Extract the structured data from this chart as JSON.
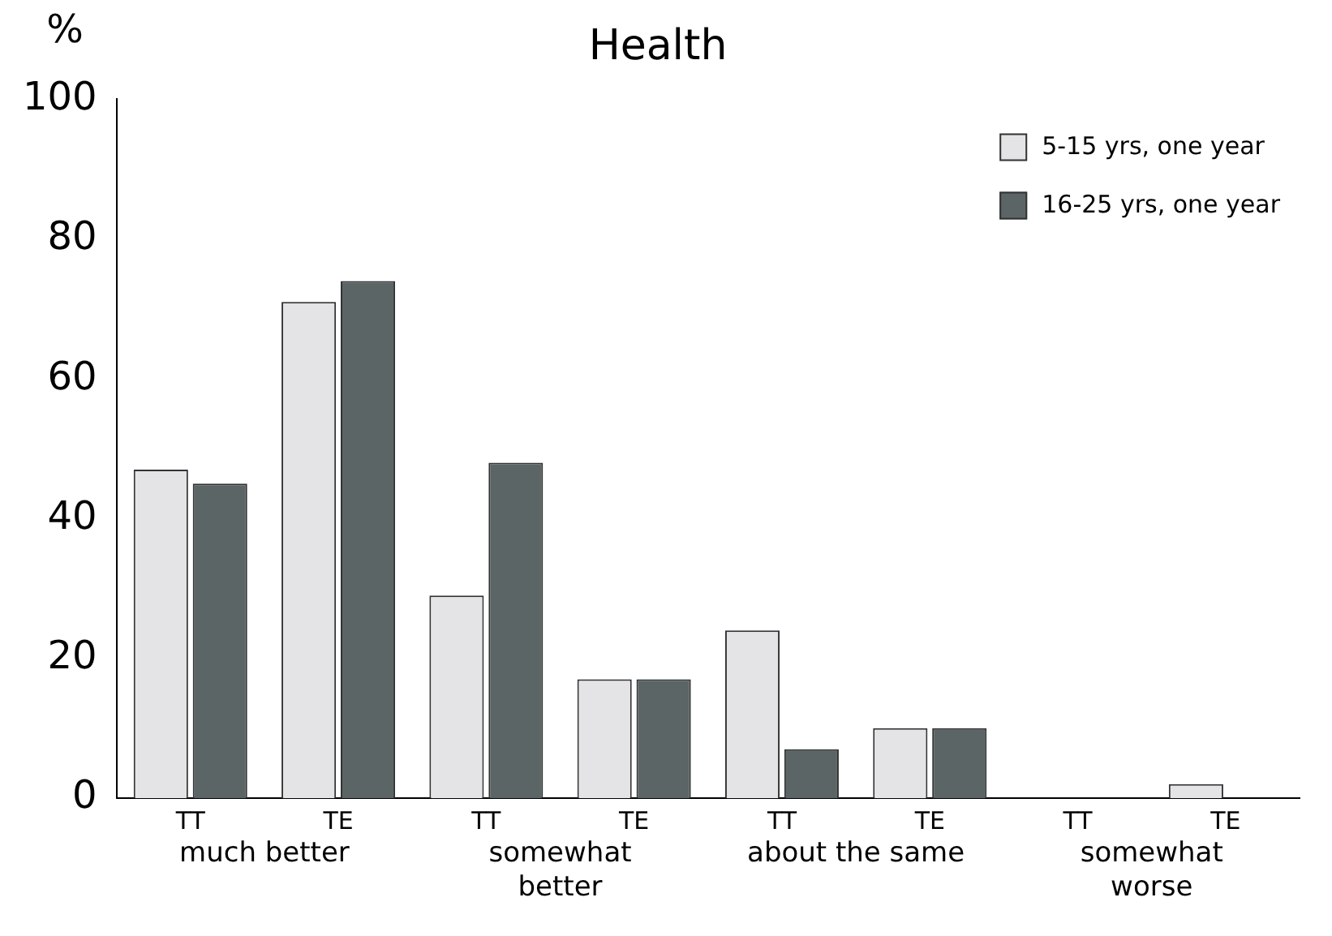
{
  "chart_data": {
    "type": "bar",
    "title": "Health",
    "ylabel": "%",
    "categories": [
      "TT",
      "TE",
      "TT",
      "TE",
      "TT",
      "TE",
      "TT",
      "TE"
    ],
    "annotations": [
      "much better",
      "somewhat better",
      "about the same",
      "somewhat worse"
    ],
    "series": [
      {
        "name": "5-15 yrs, one year",
        "color": "#e4e4e6",
        "values": [
          47,
          71,
          29,
          17,
          24,
          10,
          0,
          2
        ]
      },
      {
        "name": "16-25 yrs, one year",
        "color": "#5b6566",
        "values": [
          45,
          74,
          48,
          17,
          7,
          10,
          0,
          0
        ]
      }
    ],
    "ylim": [
      0,
      100
    ],
    "yticks": [
      0,
      20,
      40,
      60,
      80,
      100
    ],
    "grid": false,
    "legend": "top right"
  }
}
